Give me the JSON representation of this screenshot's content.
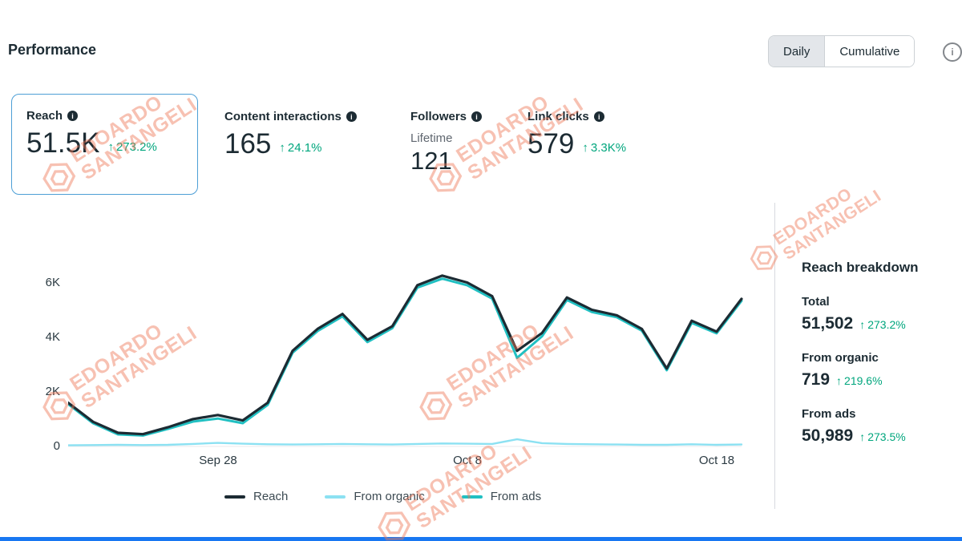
{
  "glyphs": {
    "up_arrow": "↑",
    "info": "i"
  },
  "colors": {
    "positive_green": "#00a67d",
    "accent_blue": "#4d9fd6",
    "watermark": "#ee7757",
    "bottom_bar": "#1877f2"
  },
  "header": {
    "title": "Performance",
    "toggle": {
      "daily": "Daily",
      "cumulative": "Cumulative"
    }
  },
  "watermark": {
    "line1": "EDOARDO",
    "line2": "SANTANGELI"
  },
  "metrics": [
    {
      "label": "Reach",
      "value": "51.5K",
      "delta": "273.2%"
    },
    {
      "label": "Content interactions",
      "value": "165",
      "delta": "24.1%"
    },
    {
      "label": "Followers",
      "sublabel": "Lifetime",
      "value": "121"
    },
    {
      "label": "Link clicks",
      "value": "579",
      "delta": "3.3K%"
    }
  ],
  "chart_data": {
    "type": "line",
    "x": [
      "Sep 22",
      "Sep 23",
      "Sep 24",
      "Sep 25",
      "Sep 26",
      "Sep 27",
      "Sep 28",
      "Sep 29",
      "Sep 30",
      "Oct 1",
      "Oct 2",
      "Oct 3",
      "Oct 4",
      "Oct 5",
      "Oct 6",
      "Oct 7",
      "Oct 8",
      "Oct 9",
      "Oct 10",
      "Oct 11",
      "Oct 12",
      "Oct 13",
      "Oct 14",
      "Oct 15",
      "Oct 16",
      "Oct 17",
      "Oct 18",
      "Oct 19"
    ],
    "series": [
      {
        "name": "Reach",
        "color": "#1c2b33",
        "values": [
          1600,
          900,
          500,
          450,
          700,
          1000,
          1150,
          950,
          1600,
          3500,
          4300,
          4850,
          3900,
          4400,
          5900,
          6250,
          6000,
          5500,
          3500,
          4150,
          5450,
          5000,
          4800,
          4300,
          2850,
          4600,
          4200,
          5400
        ]
      },
      {
        "name": "From organic",
        "color": "#8ce1f2",
        "values": [
          40,
          50,
          60,
          50,
          60,
          90,
          130,
          100,
          80,
          70,
          80,
          90,
          80,
          70,
          90,
          110,
          100,
          90,
          260,
          120,
          90,
          80,
          70,
          60,
          60,
          80,
          60,
          70
        ]
      },
      {
        "name": "From ads",
        "color": "#21c0c2",
        "values": [
          1550,
          850,
          440,
          400,
          640,
          910,
          1020,
          850,
          1520,
          3430,
          4220,
          4760,
          3820,
          4330,
          5810,
          6140,
          5900,
          5410,
          3240,
          4030,
          5360,
          4920,
          4730,
          4240,
          2790,
          4520,
          4140,
          5330
        ]
      }
    ],
    "ylim": [
      0,
      6600
    ],
    "yticks": [
      "0",
      "2K",
      "4K",
      "6K"
    ],
    "xticks": [
      "Sep 28",
      "Oct 8",
      "Oct 18"
    ],
    "xtick_indices": [
      6,
      16,
      26
    ],
    "grid": false,
    "legend_position": "bottom"
  },
  "breakdown": {
    "title": "Reach breakdown",
    "rows": [
      {
        "label": "Total",
        "value": "51,502",
        "delta": "273.2%"
      },
      {
        "label": "From organic",
        "value": "719",
        "delta": "219.6%"
      },
      {
        "label": "From ads",
        "value": "50,989",
        "delta": "273.5%"
      }
    ]
  }
}
